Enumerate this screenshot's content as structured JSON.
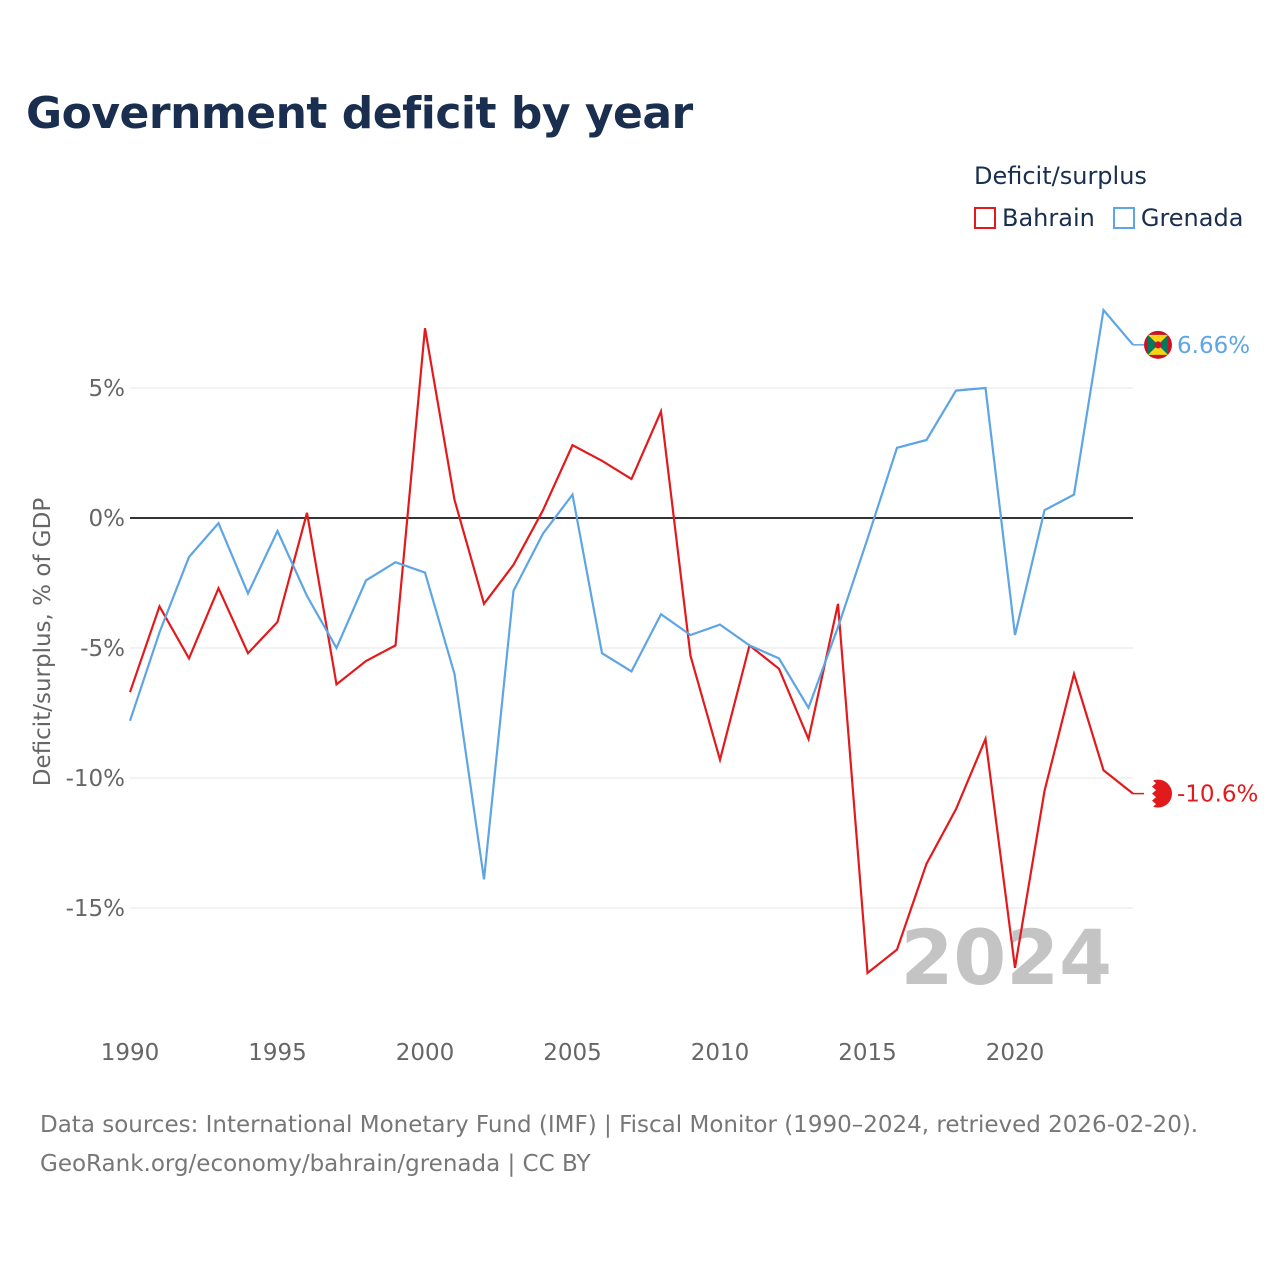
{
  "title": "Government deficit by year",
  "legend": {
    "title": "Deficit/surplus",
    "items": [
      {
        "name": "Bahrain",
        "color": "#e31a1c"
      },
      {
        "name": "Grenada",
        "color": "#5da5e5"
      }
    ]
  },
  "footer": {
    "sources": "Data sources: International Monetary Fund (IMF) | Fiscal Monitor (1990–2024, retrieved 2026-02-20).",
    "link": "GeoRank.org/economy/bahrain/grenada | CC BY"
  },
  "chart_data": {
    "type": "line",
    "title": "Government deficit by year",
    "xlabel": "",
    "ylabel": "Deficit/surplus, % of GDP",
    "year_label": "2024",
    "xlim": [
      1990,
      2024
    ],
    "ylim": [
      -19,
      9
    ],
    "x_ticks": [
      1990,
      1995,
      2000,
      2005,
      2010,
      2015,
      2020
    ],
    "y_ticks": [
      5,
      0,
      -5,
      -10,
      -15
    ],
    "y_tick_labels": [
      "5%",
      "0%",
      "-5%",
      "-10%",
      "-15%"
    ],
    "x": [
      1990,
      1991,
      1992,
      1993,
      1994,
      1995,
      1996,
      1997,
      1998,
      1999,
      2000,
      2001,
      2002,
      2003,
      2004,
      2005,
      2006,
      2007,
      2008,
      2009,
      2010,
      2011,
      2012,
      2013,
      2014,
      2015,
      2016,
      2017,
      2018,
      2019,
      2020,
      2021,
      2022,
      2023,
      2024
    ],
    "series": [
      {
        "name": "Bahrain",
        "color": "#e31a1c",
        "end_label": "-10.6%",
        "flag": "bahrain-flag",
        "values": [
          -6.7,
          -3.4,
          -5.4,
          -2.7,
          -5.2,
          -4.0,
          0.2,
          -6.4,
          -5.5,
          -4.9,
          7.3,
          0.7,
          -3.3,
          -1.8,
          0.3,
          2.8,
          2.2,
          1.5,
          4.1,
          -5.3,
          -9.3,
          -4.9,
          -5.8,
          -8.5,
          -3.3,
          -17.5,
          -16.6,
          -13.3,
          -11.2,
          -8.5,
          -17.3,
          -10.5,
          -6.0,
          -9.7,
          -10.6
        ]
      },
      {
        "name": "Grenada",
        "color": "#5da5e5",
        "end_label": "6.66%",
        "flag": "grenada-flag",
        "values": [
          -7.8,
          -4.4,
          -1.5,
          -0.2,
          -2.9,
          -0.5,
          -3.0,
          -5.0,
          -2.4,
          -1.7,
          -2.1,
          -6.0,
          -13.9,
          -2.8,
          -0.6,
          0.9,
          -5.2,
          -5.9,
          -3.7,
          -4.5,
          -4.1,
          -4.9,
          -5.4,
          -7.3,
          -4.2,
          -0.8,
          2.7,
          3.0,
          4.9,
          5.0,
          -4.5,
          0.3,
          0.9,
          8.0,
          6.66
        ]
      }
    ]
  }
}
